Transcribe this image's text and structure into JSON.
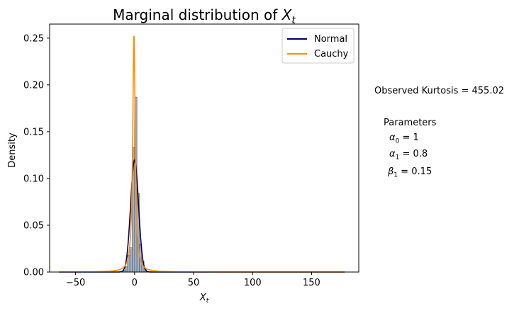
{
  "chart_data": {
    "type": "histogram",
    "title_prefix": "Marginal distribution of ",
    "title_var": "X",
    "title_sub": "t",
    "xlabel_var": "X",
    "xlabel_sub": "t",
    "ylabel": "Density",
    "xlim": [
      -72,
      190
    ],
    "ylim": [
      0,
      0.265
    ],
    "x_ticks": [
      -50,
      0,
      50,
      100,
      150
    ],
    "x_tick_labels": [
      "−50",
      "0",
      "50",
      "100",
      "150"
    ],
    "y_ticks": [
      0.0,
      0.05,
      0.1,
      0.15,
      0.2,
      0.25
    ],
    "y_tick_labels": [
      "0.00",
      "0.05",
      "0.10",
      "0.15",
      "0.20",
      "0.25"
    ],
    "histogram": {
      "color": "#9fb1c6",
      "edge_color": "#555555",
      "bin_edges": [
        -10,
        -8,
        -6,
        -4,
        -2,
        0,
        2,
        4,
        6,
        8,
        10
      ],
      "densities": [
        0.002,
        0.006,
        0.018,
        0.026,
        0.133,
        0.187,
        0.084,
        0.03,
        0.012,
        0.004
      ]
    },
    "series": [
      {
        "name": "Normal",
        "color": "#00006e",
        "distribution": "normal",
        "loc": 0.0,
        "scale": 3.33
      },
      {
        "name": "Cauchy",
        "color": "#ff8c00",
        "distribution": "cauchy",
        "loc": -0.5,
        "scale": 1.26
      }
    ],
    "x_range_curves": [
      -64,
      178
    ],
    "legend_position": "upper right",
    "grid": false
  },
  "annotations": {
    "kurtosis": "Observed Kurtosis = 455.02",
    "parameters_heading": "Parameters",
    "alpha0_sym": "α",
    "alpha0_sub": "0",
    "alpha0_val": " = 1",
    "alpha1_sym": "α",
    "alpha1_sub": "1",
    "alpha1_val": " = 0.8",
    "beta1_sym": "β",
    "beta1_sub": "1",
    "beta1_val": " = 0.15"
  }
}
